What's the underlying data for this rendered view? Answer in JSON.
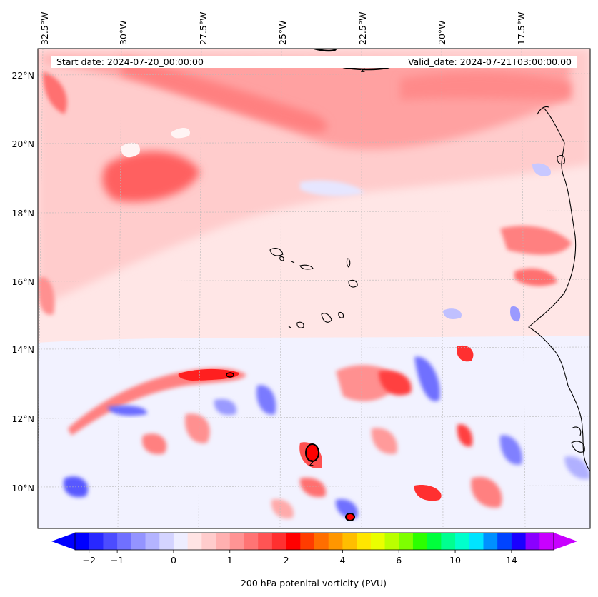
{
  "map": {
    "start_label": "Start date: 2024-07-20_00:00:00",
    "valid_label": "Valid_date: 2024-07-21T03:00:00.00",
    "lon_ticks": [
      "32.5°W",
      "30°W",
      "27.5°W",
      "25°W",
      "22.5°W",
      "20°W",
      "17.5°W"
    ],
    "lat_ticks": [
      "22°N",
      "20°N",
      "18°N",
      "16°N",
      "14°N",
      "12°N",
      "10°N"
    ],
    "contour_labels": [
      "2",
      "2"
    ]
  },
  "colorbar": {
    "ticks": [
      "−2",
      "−1",
      "0",
      "1",
      "2",
      "4",
      "6",
      "10",
      "14"
    ],
    "label": "200 hPa potenital vorticity (PVU)",
    "colors": [
      "#0000ff",
      "#2828ff",
      "#4c4cff",
      "#7070ff",
      "#9494ff",
      "#b4b4ff",
      "#d4d4ff",
      "#eeeeff",
      "#ffe4e4",
      "#ffcccc",
      "#ffb0b0",
      "#ff9494",
      "#ff7474",
      "#ff5454",
      "#ff3030",
      "#ff0000",
      "#ff3c00",
      "#ff6e00",
      "#ff9600",
      "#ffbe00",
      "#ffe600",
      "#eaff00",
      "#baff00",
      "#7eff00",
      "#2cff00",
      "#00ff3c",
      "#00ff90",
      "#00ffcc",
      "#00e4ff",
      "#0090ff",
      "#0044ff",
      "#1a00ff",
      "#8a00ff",
      "#c800ff"
    ]
  }
}
